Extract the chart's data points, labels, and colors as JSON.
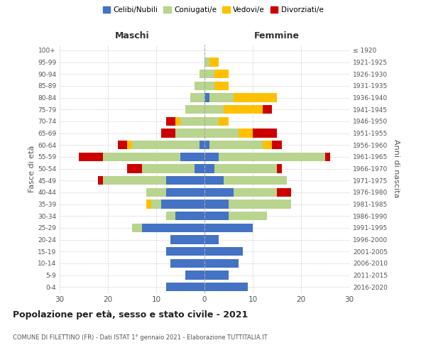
{
  "age_groups": [
    "0-4",
    "5-9",
    "10-14",
    "15-19",
    "20-24",
    "25-29",
    "30-34",
    "35-39",
    "40-44",
    "45-49",
    "50-54",
    "55-59",
    "60-64",
    "65-69",
    "70-74",
    "75-79",
    "80-84",
    "85-89",
    "90-94",
    "95-99",
    "100+"
  ],
  "birth_years": [
    "2016-2020",
    "2011-2015",
    "2006-2010",
    "2001-2005",
    "1996-2000",
    "1991-1995",
    "1986-1990",
    "1981-1985",
    "1976-1980",
    "1971-1975",
    "1966-1970",
    "1961-1965",
    "1956-1960",
    "1951-1955",
    "1946-1950",
    "1941-1945",
    "1936-1940",
    "1931-1935",
    "1926-1930",
    "1921-1925",
    "≤ 1920"
  ],
  "males": {
    "celibi": [
      8,
      4,
      7,
      8,
      7,
      13,
      6,
      9,
      8,
      8,
      2,
      5,
      1,
      0,
      0,
      0,
      0,
      0,
      0,
      0,
      0
    ],
    "coniugati": [
      0,
      0,
      0,
      0,
      0,
      2,
      2,
      2,
      4,
      13,
      11,
      16,
      14,
      6,
      5,
      4,
      3,
      2,
      1,
      0,
      0
    ],
    "vedovi": [
      0,
      0,
      0,
      0,
      0,
      0,
      0,
      1,
      0,
      0,
      0,
      0,
      1,
      0,
      1,
      0,
      0,
      0,
      0,
      0,
      0
    ],
    "divorziati": [
      0,
      0,
      0,
      0,
      0,
      0,
      0,
      0,
      0,
      1,
      3,
      5,
      2,
      3,
      2,
      0,
      0,
      0,
      0,
      0,
      0
    ]
  },
  "females": {
    "nubili": [
      9,
      5,
      7,
      8,
      3,
      10,
      5,
      5,
      6,
      4,
      2,
      3,
      1,
      0,
      0,
      0,
      1,
      0,
      0,
      0,
      0
    ],
    "coniugate": [
      0,
      0,
      0,
      0,
      0,
      0,
      8,
      13,
      9,
      13,
      13,
      22,
      11,
      7,
      3,
      4,
      5,
      2,
      2,
      1,
      0
    ],
    "vedove": [
      0,
      0,
      0,
      0,
      0,
      0,
      0,
      0,
      0,
      0,
      0,
      0,
      2,
      3,
      2,
      8,
      9,
      3,
      3,
      2,
      0
    ],
    "divorziate": [
      0,
      0,
      0,
      0,
      0,
      0,
      0,
      0,
      3,
      0,
      1,
      1,
      2,
      5,
      0,
      2,
      0,
      0,
      0,
      0,
      0
    ]
  },
  "colors": {
    "celibi": "#4472c4",
    "coniugati": "#b8d48e",
    "vedovi": "#ffc000",
    "divorziati": "#cc0000"
  },
  "xlim": 30,
  "title": "Popolazione per età, sesso e stato civile - 2021",
  "subtitle": "COMUNE DI FILETTINO (FR) - Dati ISTAT 1° gennaio 2021 - Elaborazione TUTTITALIA.IT",
  "ylabel_left": "Fasce di età",
  "ylabel_right": "Anni di nascita",
  "xlabel_left": "Maschi",
  "xlabel_right": "Femmine",
  "bg_color": "#ffffff",
  "grid_color": "#cccccc"
}
